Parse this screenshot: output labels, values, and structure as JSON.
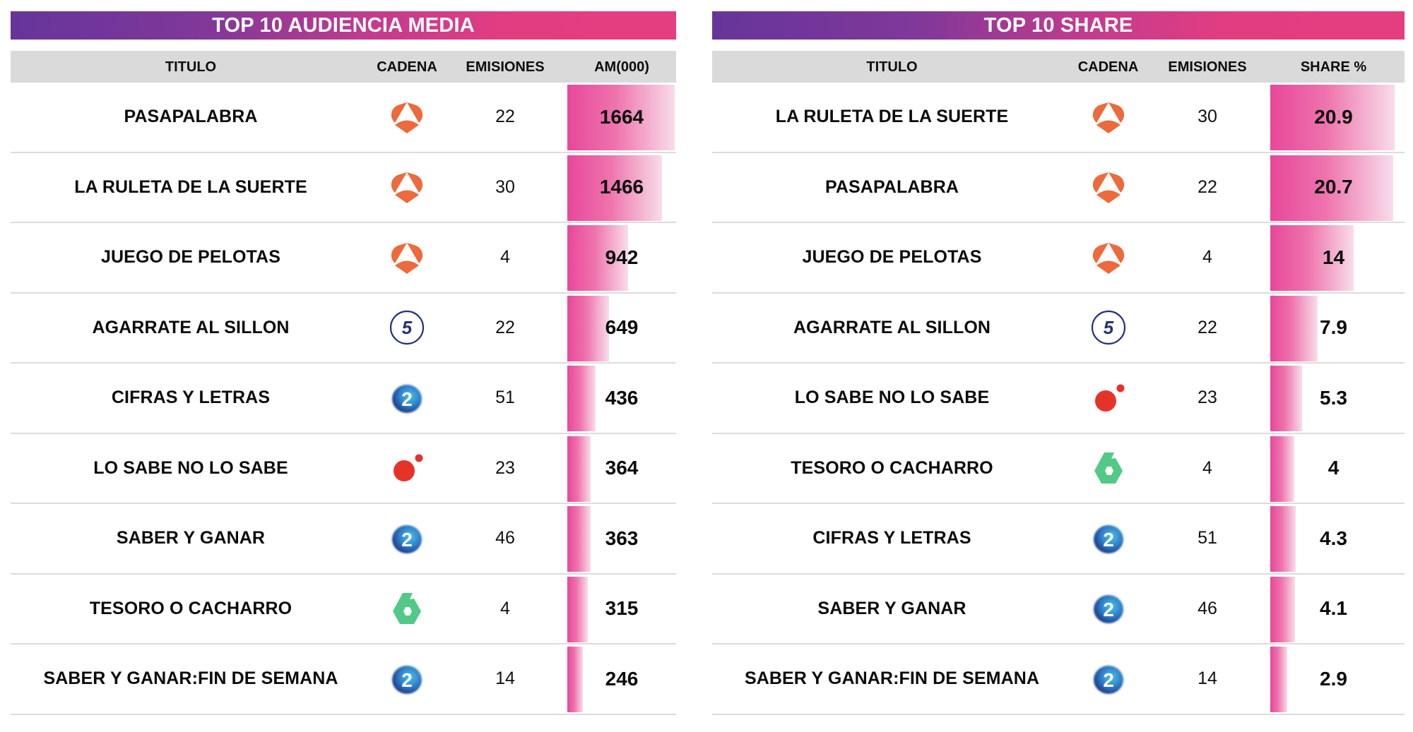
{
  "colors": {
    "banner_start": "#66359a",
    "banner_end": "#e43d80",
    "header_bg": "#dadada",
    "bar_start": "#e8479a",
    "bar_end": "#f8dceb",
    "antena3": "#ec6a3c",
    "telecinco": "#25327a",
    "la2": "#2f7dc8",
    "cuatro": "#e6332a",
    "lasexta": "#53c987"
  },
  "left": {
    "banner": "TOP 10 AUDIENCIA MEDIA",
    "headers": {
      "titulo": "TITULO",
      "cadena": "CADENA",
      "emisiones": "EMISIONES",
      "value": "AM(000)"
    },
    "rows": [
      {
        "titulo": "PASAPALABRA",
        "cadena": "antena3",
        "emisiones": "22",
        "value": "1664"
      },
      {
        "titulo": "LA RULETA DE LA SUERTE",
        "cadena": "antena3",
        "emisiones": "30",
        "value": "1466"
      },
      {
        "titulo": "JUEGO DE PELOTAS",
        "cadena": "antena3",
        "emisiones": "4",
        "value": "942"
      },
      {
        "titulo": "AGARRATE AL SILLON",
        "cadena": "telecinco",
        "emisiones": "22",
        "value": "649"
      },
      {
        "titulo": "CIFRAS Y LETRAS",
        "cadena": "la2",
        "emisiones": "51",
        "value": "436"
      },
      {
        "titulo": "LO SABE NO LO SABE",
        "cadena": "cuatro",
        "emisiones": "23",
        "value": "364"
      },
      {
        "titulo": "SABER Y GANAR",
        "cadena": "la2",
        "emisiones": "46",
        "value": "363"
      },
      {
        "titulo": "TESORO O CACHARRO",
        "cadena": "lasexta",
        "emisiones": "4",
        "value": "315"
      },
      {
        "titulo": "SABER Y GANAR:FIN DE SEMANA",
        "cadena": "la2",
        "emisiones": "14",
        "value": "246"
      }
    ]
  },
  "right": {
    "banner": "TOP 10 SHARE",
    "headers": {
      "titulo": "TITULO",
      "cadena": "CADENA",
      "emisiones": "EMISIONES",
      "value": "SHARE %"
    },
    "rows": [
      {
        "titulo": "LA RULETA DE LA SUERTE",
        "cadena": "antena3",
        "emisiones": "30",
        "value": "20.9"
      },
      {
        "titulo": "PASAPALABRA",
        "cadena": "antena3",
        "emisiones": "22",
        "value": "20.7"
      },
      {
        "titulo": "JUEGO DE PELOTAS",
        "cadena": "antena3",
        "emisiones": "4",
        "value": "14"
      },
      {
        "titulo": "AGARRATE AL SILLON",
        "cadena": "telecinco",
        "emisiones": "22",
        "value": "7.9"
      },
      {
        "titulo": "LO SABE NO LO SABE",
        "cadena": "cuatro",
        "emisiones": "23",
        "value": "5.3"
      },
      {
        "titulo": "TESORO O CACHARRO",
        "cadena": "lasexta",
        "emisiones": "4",
        "value": "4"
      },
      {
        "titulo": "CIFRAS Y LETRAS",
        "cadena": "la2",
        "emisiones": "51",
        "value": "4.3"
      },
      {
        "titulo": "SABER Y GANAR",
        "cadena": "la2",
        "emisiones": "46",
        "value": "4.1"
      },
      {
        "titulo": "SABER Y GANAR:FIN DE SEMANA",
        "cadena": "la2",
        "emisiones": "14",
        "value": "2.9"
      }
    ]
  },
  "chart_data": [
    {
      "type": "bar",
      "title": "TOP 10 AUDIENCIA MEDIA",
      "orientation": "horizontal",
      "xlabel": "",
      "ylabel": "AM(000)",
      "columns": [
        "TITULO",
        "CADENA",
        "EMISIONES",
        "AM(000)"
      ],
      "categories": [
        "PASAPALABRA",
        "LA RULETA DE LA SUERTE",
        "JUEGO DE PELOTAS",
        "AGARRATE AL SILLON",
        "CIFRAS Y LETRAS",
        "LO SABE NO LO SABE",
        "SABER Y GANAR",
        "TESORO O CACHARRO",
        "SABER Y GANAR:FIN DE SEMANA"
      ],
      "cadena": [
        "Antena 3",
        "Antena 3",
        "Antena 3",
        "Telecinco",
        "La 2",
        "Cuatro",
        "La 2",
        "laSexta",
        "La 2"
      ],
      "emisiones": [
        22,
        30,
        4,
        22,
        51,
        23,
        46,
        4,
        14
      ],
      "values": [
        1664,
        1466,
        942,
        649,
        436,
        364,
        363,
        315,
        246
      ],
      "grid": false,
      "legend": "none"
    },
    {
      "type": "bar",
      "title": "TOP 10 SHARE",
      "orientation": "horizontal",
      "xlabel": "",
      "ylabel": "SHARE %",
      "columns": [
        "TITULO",
        "CADENA",
        "EMISIONES",
        "SHARE %"
      ],
      "categories": [
        "LA RULETA DE LA SUERTE",
        "PASAPALABRA",
        "JUEGO DE PELOTAS",
        "AGARRATE AL SILLON",
        "LO SABE NO LO SABE",
        "TESORO O CACHARRO",
        "CIFRAS Y LETRAS",
        "SABER Y GANAR",
        "SABER Y GANAR:FIN DE SEMANA"
      ],
      "cadena": [
        "Antena 3",
        "Antena 3",
        "Antena 3",
        "Telecinco",
        "Cuatro",
        "laSexta",
        "La 2",
        "La 2",
        "La 2"
      ],
      "emisiones": [
        30,
        22,
        4,
        22,
        23,
        4,
        51,
        46,
        14
      ],
      "values": [
        20.9,
        20.7,
        14,
        7.9,
        5.3,
        4,
        4.3,
        4.1,
        2.9
      ],
      "grid": false,
      "legend": "none"
    }
  ]
}
